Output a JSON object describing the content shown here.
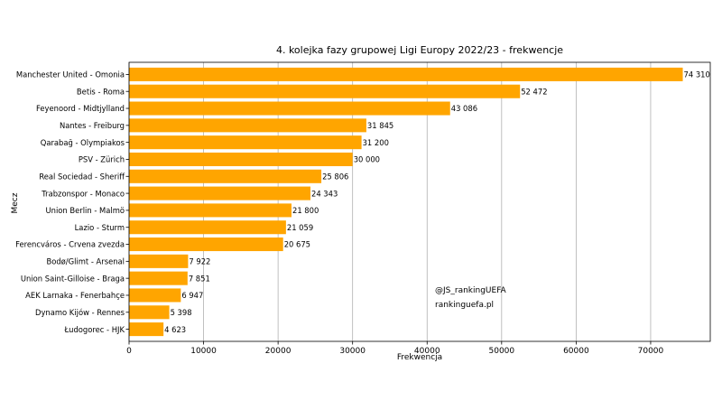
{
  "chart_data": {
    "type": "bar",
    "orientation": "horizontal",
    "title": "4. kolejka fazy grupowej Ligi Europy 2022/23 - frekwencje",
    "xlabel": "Frekwencja",
    "ylabel": "Mecz",
    "xlim": [
      0,
      78000
    ],
    "xticks": [
      0,
      10000,
      20000,
      30000,
      40000,
      50000,
      60000,
      70000
    ],
    "grid": "vertical",
    "bar_color": "#FFA500",
    "categories": [
      "Manchester United - Omonia",
      "Betis - Roma",
      "Feyenoord - Midtjylland",
      "Nantes - Freiburg",
      "Qarabağ - Olympiakos",
      "PSV - Zürich",
      "Real Sociedad - Sheriff",
      "Trabzonspor - Monaco",
      "Union Berlin - Malmö",
      "Lazio - Sturm",
      "Ferencváros - Crvena zvezda",
      "Bodø/Glimt - Arsenal",
      "Union Saint-Gilloise - Braga",
      "AEK Larnaka - Fenerbahçe",
      "Dynamo Kijów - Rennes",
      "Łudogorec - HJK"
    ],
    "values": [
      74310,
      52472,
      43086,
      31845,
      31200,
      30000,
      25806,
      24343,
      21800,
      21059,
      20675,
      7922,
      7851,
      6947,
      5398,
      4623
    ],
    "data_labels": [
      "74 310",
      "52 472",
      "43 086",
      "31 845",
      "31 200",
      "30 000",
      "25 806",
      "24 343",
      "21 800",
      "21 059",
      "20 675",
      "7 922",
      "7 851",
      "6 947",
      "5 398",
      "4 623"
    ],
    "annotations": [
      "@JS_rankingUEFA",
      "rankinguefa.pl"
    ]
  }
}
